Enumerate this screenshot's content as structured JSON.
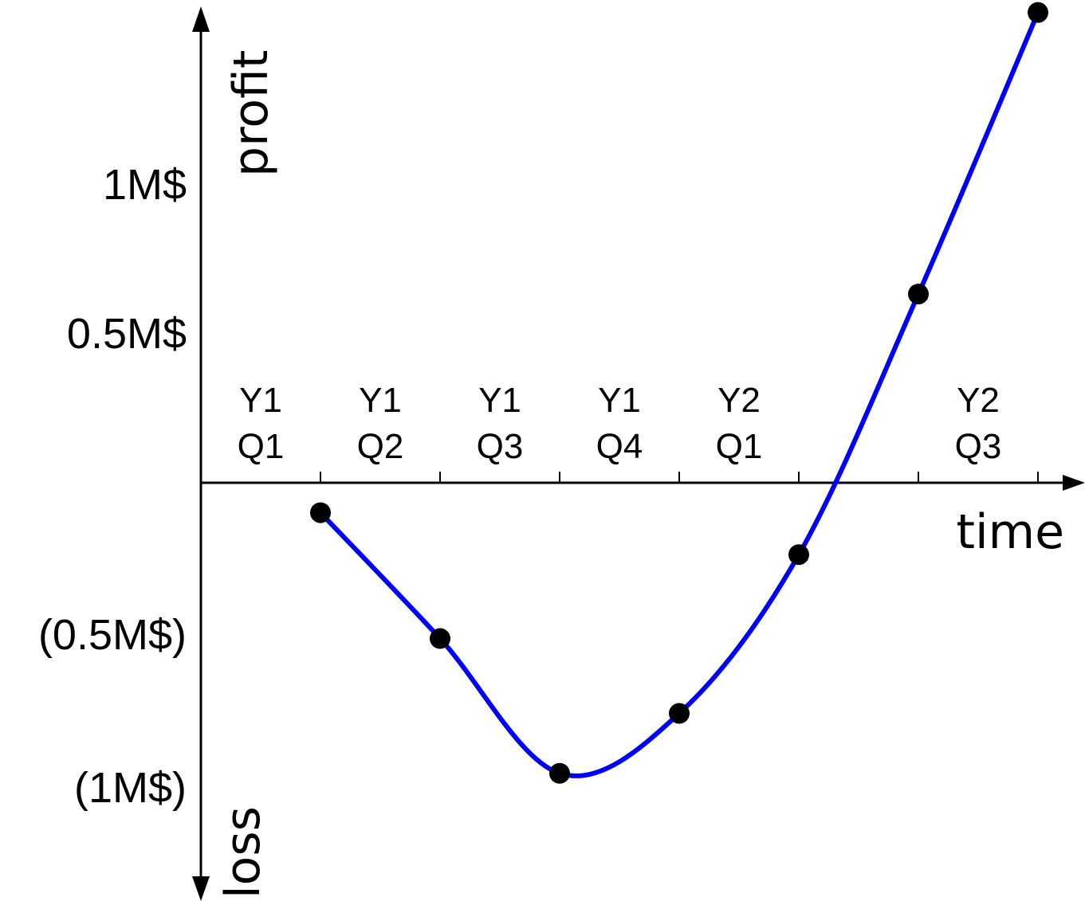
{
  "chart_data": {
    "type": "line",
    "title": "",
    "xlabel": "time",
    "ylabel_top": "profit",
    "ylabel_bottom": "loss",
    "y_unit": "M$",
    "y_ticks": [
      {
        "value": 1.0,
        "label": "1M$"
      },
      {
        "value": 0.5,
        "label": "0.5M$"
      },
      {
        "value": -0.5,
        "label": "(0.5M$)"
      },
      {
        "value": -1.0,
        "label": "(1M$)"
      }
    ],
    "categories": [
      {
        "line1": "Y1",
        "line2": "Q1"
      },
      {
        "line1": "Y1",
        "line2": "Q2"
      },
      {
        "line1": "Y1",
        "line2": "Q3"
      },
      {
        "line1": "Y1",
        "line2": "Q4"
      },
      {
        "line1": "Y2",
        "line2": "Q1"
      },
      {
        "line1": "",
        "line2": ""
      },
      {
        "line1": "Y2",
        "line2": "Q3"
      }
    ],
    "x_ticks_count": 7,
    "series": [
      {
        "color": "#0000ff",
        "points": [
          {
            "x": 1,
            "y": -0.1
          },
          {
            "x": 2,
            "y": -0.52
          },
          {
            "x": 3,
            "y": -0.97
          },
          {
            "x": 4,
            "y": -0.77
          },
          {
            "x": 5,
            "y": -0.24
          },
          {
            "x": 6,
            "y": 0.63
          },
          {
            "x": 7,
            "y": 1.57
          }
        ]
      }
    ],
    "legend": "none",
    "grid": false
  }
}
